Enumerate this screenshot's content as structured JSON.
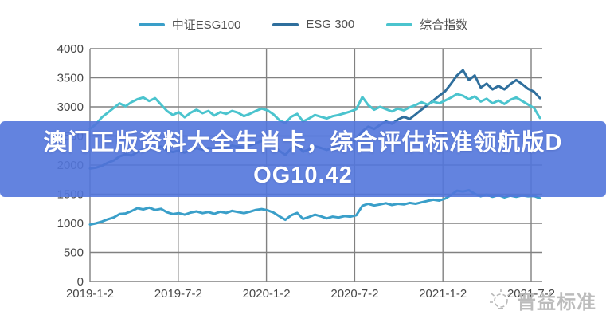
{
  "legend": {
    "position": "top"
  },
  "chart_data": {
    "type": "line",
    "title": "",
    "xlabel": "",
    "ylabel": "",
    "ylim": [
      0,
      4000
    ],
    "grid": true,
    "grid_color": "#818181",
    "tick_color": "#474747",
    "legend_position": "top",
    "y_ticks": [
      4000,
      3500,
      3000,
      2500,
      2000,
      1500,
      1000,
      500,
      0
    ],
    "x_tick_labels": [
      "2019-1-2",
      "2019-7-2",
      "2020-1-2",
      "2020-7-2",
      "2021-1-2",
      "2021-7-2"
    ],
    "series": [
      {
        "name": "中证ESG100",
        "color": "#3A9FC9",
        "values": [
          980,
          1000,
          1030,
          1070,
          1100,
          1160,
          1170,
          1210,
          1260,
          1240,
          1270,
          1230,
          1250,
          1190,
          1160,
          1175,
          1150,
          1185,
          1205,
          1175,
          1195,
          1165,
          1200,
          1180,
          1215,
          1195,
          1175,
          1200,
          1230,
          1245,
          1225,
          1185,
          1120,
          1060,
          1140,
          1180,
          1075,
          1110,
          1150,
          1120,
          1085,
          1115,
          1100,
          1125,
          1115,
          1140,
          1300,
          1335,
          1305,
          1325,
          1345,
          1315,
          1335,
          1325,
          1350,
          1335,
          1360,
          1385,
          1405,
          1390,
          1425,
          1485,
          1560,
          1545,
          1570,
          1505,
          1465,
          1495,
          1455,
          1485,
          1445,
          1475,
          1455,
          1480,
          1465,
          1470,
          1430
        ]
      },
      {
        "name": "ESG 300",
        "color": "#2F6F9D",
        "values": [
          1940,
          1955,
          1985,
          2040,
          2080,
          2150,
          2185,
          2165,
          2225,
          2280,
          2310,
          2280,
          2320,
          2255,
          2225,
          2250,
          2215,
          2260,
          2290,
          2265,
          2295,
          2275,
          2315,
          2295,
          2335,
          2315,
          2305,
          2335,
          2375,
          2415,
          2395,
          2335,
          2245,
          2175,
          2285,
          2340,
          2230,
          2270,
          2325,
          2295,
          2260,
          2295,
          2320,
          2355,
          2395,
          2450,
          2580,
          2660,
          2620,
          2690,
          2750,
          2710,
          2780,
          2830,
          2790,
          2870,
          2950,
          3030,
          3110,
          3190,
          3270,
          3400,
          3540,
          3630,
          3460,
          3540,
          3330,
          3400,
          3300,
          3360,
          3300,
          3390,
          3460,
          3390,
          3310,
          3260,
          3150
        ]
      },
      {
        "name": "综合指数",
        "color": "#4BC4CE",
        "values": [
          2620,
          2700,
          2820,
          2900,
          2980,
          3060,
          3010,
          3080,
          3130,
          3160,
          3100,
          3150,
          3040,
          2930,
          2860,
          2910,
          2820,
          2900,
          2950,
          2890,
          2930,
          2850,
          2910,
          2880,
          2930,
          2900,
          2840,
          2880,
          2930,
          2970,
          2940,
          2870,
          2770,
          2720,
          2830,
          2880,
          2750,
          2800,
          2860,
          2830,
          2800,
          2840,
          2860,
          2890,
          2920,
          2960,
          3170,
          3030,
          2950,
          3000,
          2960,
          2920,
          2970,
          2940,
          2990,
          3030,
          3080,
          3040,
          3090,
          3060,
          3110,
          3160,
          3220,
          3190,
          3130,
          3180,
          3090,
          3140,
          3060,
          3110,
          3050,
          3120,
          3160,
          3100,
          3040,
          2980,
          2810
        ]
      }
    ]
  },
  "banner": {
    "line1": "澳门正版资料大全生肖卡，综合评估标准领航版D",
    "line2": "OG10.42",
    "bg": "rgba(82,118,219,0.9)",
    "text_color": "#ffffff"
  },
  "watermark": {
    "text": "晋益标准",
    "icon": "lightbulb-icon",
    "color": "#b3b3b3"
  }
}
